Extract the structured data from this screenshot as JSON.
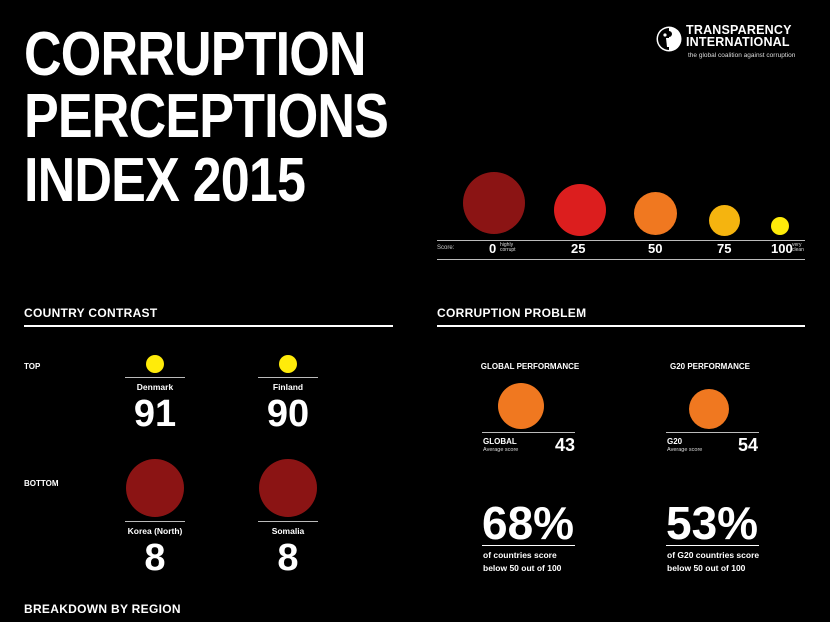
{
  "title": {
    "line1": "CORRUPTION",
    "line2": "PERCEPTIONS",
    "line3": "INDEX 2015"
  },
  "logo": {
    "name_line1": "TRANSPARENCY",
    "name_line2": "INTERNATIONAL",
    "tagline": "the global coalition against corruption"
  },
  "scale": {
    "label": "Score:",
    "steps": [
      {
        "value": "0",
        "note_line1": "highly",
        "note_line2": "corrupt",
        "color": "#8B1414"
      },
      {
        "value": "25",
        "color": "#DC1E1E"
      },
      {
        "value": "50",
        "color": "#F07820"
      },
      {
        "value": "75",
        "color": "#F5B40F"
      },
      {
        "value": "100",
        "note_line1": "very",
        "note_line2": "clean",
        "color": "#FFEB0A"
      }
    ]
  },
  "country_contrast": {
    "heading": "COUNTRY CONTRAST",
    "top_label": "TOP",
    "bottom_label": "BOTTOM",
    "top": [
      {
        "name": "Denmark",
        "score": "91",
        "color": "#FFEB0A"
      },
      {
        "name": "Finland",
        "score": "90",
        "color": "#FFEB0A"
      }
    ],
    "bottom": [
      {
        "name": "Korea (North)",
        "score": "8",
        "color": "#8B1414"
      },
      {
        "name": "Somalia",
        "score": "8",
        "color": "#8B1414"
      }
    ]
  },
  "corruption_problem": {
    "heading": "CORRUPTION PROBLEM",
    "global": {
      "heading": "GLOBAL PERFORMANCE",
      "key": "GLOBAL",
      "sub": "Average score",
      "value": "43",
      "percent": "68%",
      "text_line1": "of countries score",
      "text_line2": "below 50 out of 100",
      "color": "#F07820"
    },
    "g20": {
      "heading": "G20 PERFORMANCE",
      "key": "G20",
      "sub": "Average score",
      "value": "54",
      "percent": "53%",
      "text_line1": "of G20 countries score",
      "text_line2": "below 50 out of 100",
      "color": "#F07820"
    }
  },
  "region": {
    "heading": "BREAKDOWN BY REGION"
  }
}
